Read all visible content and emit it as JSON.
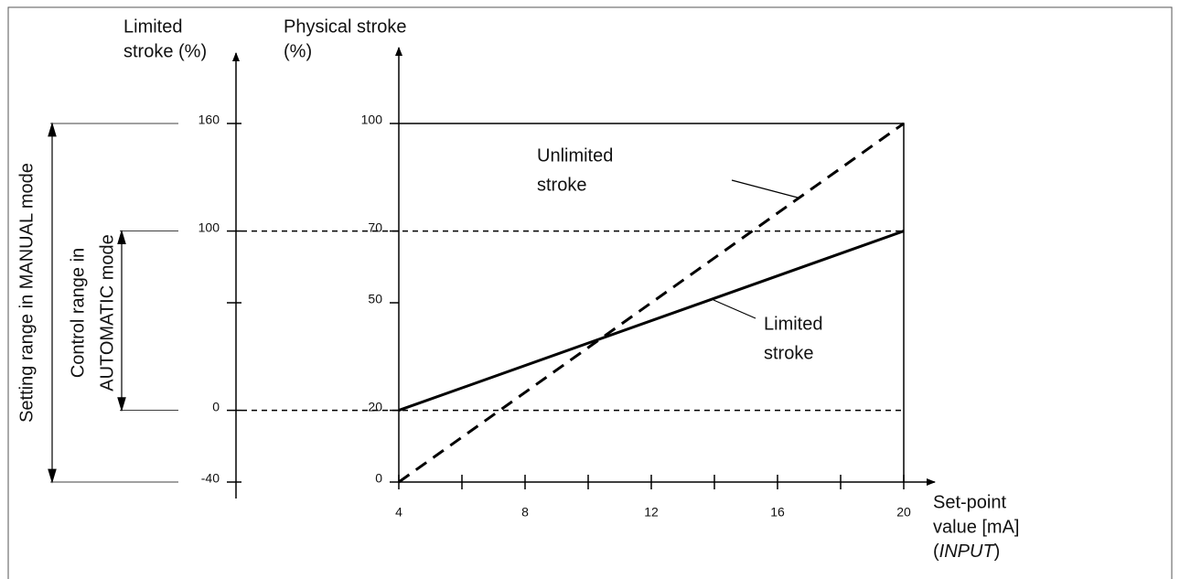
{
  "chart_data": {
    "type": "line",
    "x_label": [
      "Set-point",
      "value [mA]"
    ],
    "x_label_note": [
      "(",
      "INPUT",
      ")"
    ],
    "y_label": [
      "Physical stroke",
      "(%)"
    ],
    "y2_label": [
      "Limited",
      "stroke (%)"
    ],
    "x": [
      4,
      20
    ],
    "xlim": [
      4,
      20
    ],
    "xticks": [
      4,
      8,
      12,
      16,
      20
    ],
    "xminor_ticks": [
      6,
      10,
      14,
      18
    ],
    "ylim": [
      0,
      100
    ],
    "yticks": [
      0,
      20,
      50,
      70,
      100
    ],
    "y2lim": [
      -40,
      160
    ],
    "y2ticks": [
      -40,
      0,
      100,
      160
    ],
    "y2minor_ticks": [
      60
    ],
    "hlines": [
      20,
      70
    ],
    "series": [
      {
        "name": [
          "Unlimited",
          "stroke"
        ],
        "color": "#000000",
        "linestyle": "dashed",
        "values": [
          0,
          100
        ]
      },
      {
        "name": [
          "Limited",
          "stroke"
        ],
        "color": "#000000",
        "linestyle": "solid",
        "values": [
          20,
          70
        ]
      }
    ],
    "ranges": [
      {
        "label": [
          "Setting range in MANUAL mode"
        ],
        "axis": "y2",
        "from": -40,
        "to": 160
      },
      {
        "label": [
          "Control range in",
          "AUTOMATIC mode"
        ],
        "axis": "y2",
        "from": 0,
        "to": 100
      }
    ]
  }
}
